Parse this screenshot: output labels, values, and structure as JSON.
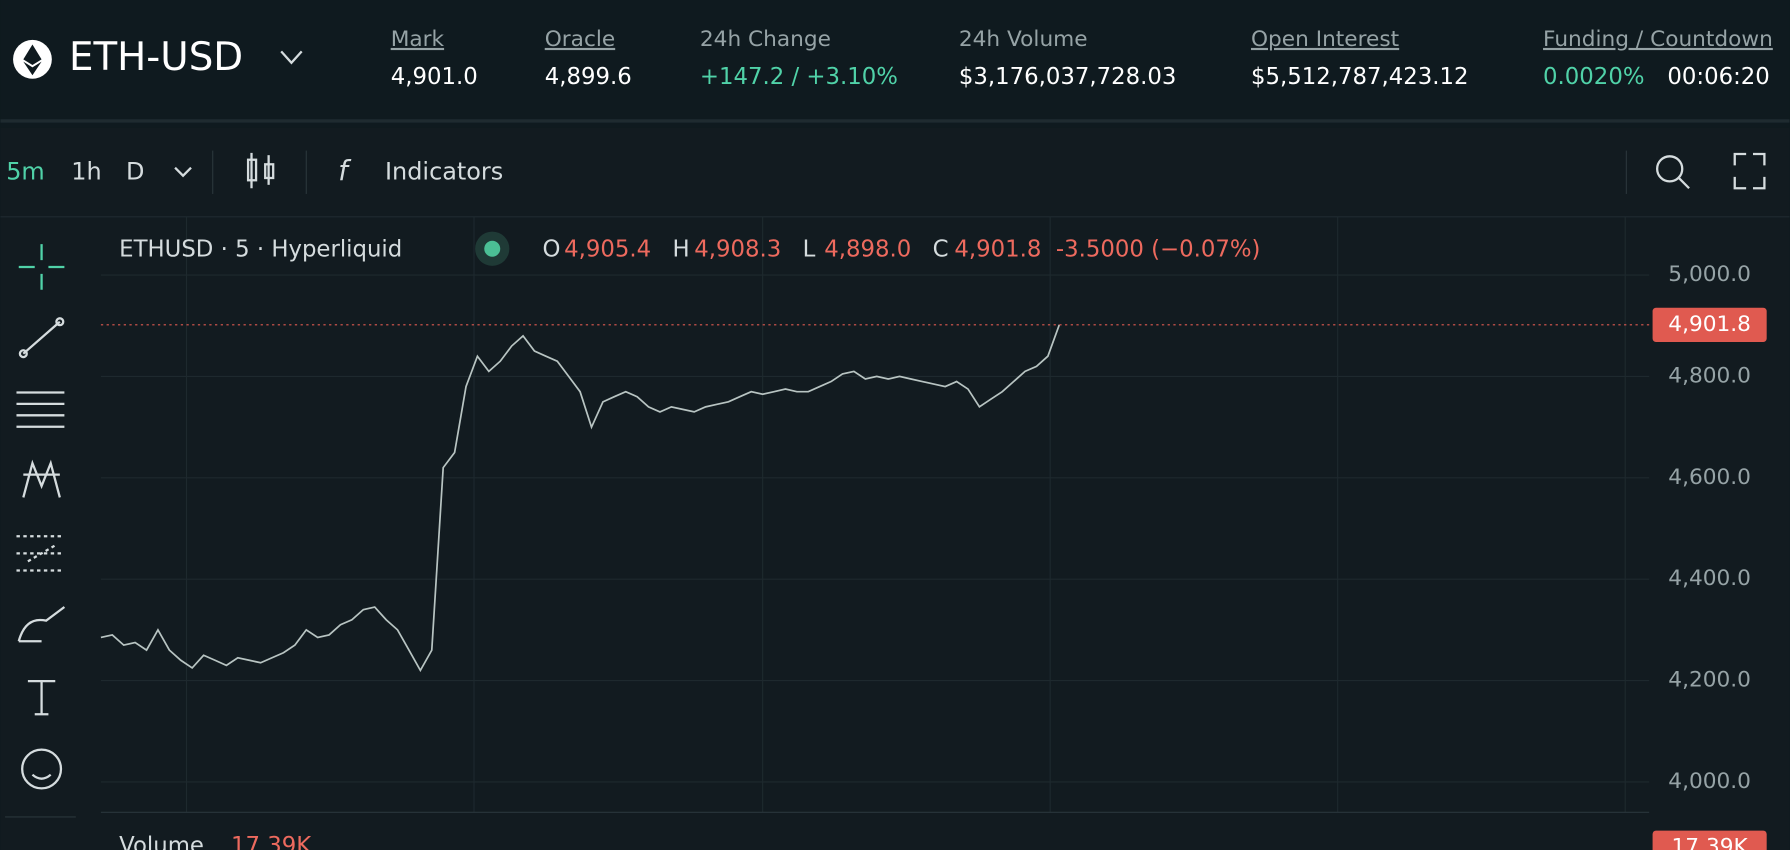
{
  "market": {
    "symbol": "ETH-USD"
  },
  "stats": [
    {
      "label": "Mark",
      "value": "4,901.0"
    },
    {
      "label": "Oracle",
      "value": "4,899.6"
    },
    {
      "label": "24h Change",
      "value": "+147.2 / +3.10%"
    },
    {
      "label": "24h Volume",
      "value": "$3,176,037,728.03"
    },
    {
      "label": "Open Interest",
      "value": "$5,512,787,423.12"
    },
    {
      "label": "Funding / Countdown",
      "value": "0.0020%",
      "countdown": "00:06:20"
    }
  ],
  "toolbar": {
    "intervals": [
      "5m",
      "1h",
      "D"
    ],
    "indicators": "Indicators"
  },
  "legend": {
    "title": "ETHUSD · 5 · Hyperliquid",
    "ohlc": [
      {
        "key": "O",
        "value": "4,905.4"
      },
      {
        "key": "H",
        "value": "4,908.3"
      },
      {
        "key": "L",
        "value": "4,898.0"
      },
      {
        "key": "C",
        "value": "4,901.8"
      }
    ],
    "change": "-3.5000 (−0.07%)"
  },
  "volume": {
    "label": "Volume",
    "value": "17.39K"
  },
  "chart_data": {
    "type": "line",
    "ylim": [
      3940,
      5115
    ],
    "yticks": [
      {
        "value": 4000,
        "label": "4,000.0"
      },
      {
        "value": 4200,
        "label": "4,200.0"
      },
      {
        "value": 4400,
        "label": "4,400.0"
      },
      {
        "value": 4600,
        "label": "4,600.0"
      },
      {
        "value": 4800,
        "label": "4,800.0"
      },
      {
        "value": 5000,
        "label": "5,000.0"
      }
    ],
    "grid": true,
    "last": {
      "value": 4901.8,
      "label": "4,901.8"
    },
    "series": [
      {
        "color": "#b8c4c2",
        "values": [
          4285,
          4290,
          4270,
          4275,
          4260,
          4300,
          4260,
          4240,
          4225,
          4250,
          4240,
          4230,
          4245,
          4240,
          4235,
          4245,
          4255,
          4270,
          4300,
          4285,
          4290,
          4310,
          4320,
          4340,
          4345,
          4320,
          4300,
          4260,
          4220,
          4260,
          4620,
          4650,
          4780,
          4840,
          4810,
          4830,
          4860,
          4880,
          4850,
          4840,
          4830,
          4800,
          4770,
          4700,
          4750,
          4760,
          4770,
          4760,
          4740,
          4730,
          4740,
          4735,
          4730,
          4740,
          4745,
          4750,
          4760,
          4770,
          4765,
          4770,
          4775,
          4770,
          4770,
          4780,
          4790,
          4805,
          4810,
          4795,
          4800,
          4795,
          4800,
          4795,
          4790,
          4785,
          4780,
          4790,
          4775,
          4740,
          4755,
          4770,
          4790,
          4810,
          4820,
          4840,
          4901.8
        ]
      }
    ]
  }
}
